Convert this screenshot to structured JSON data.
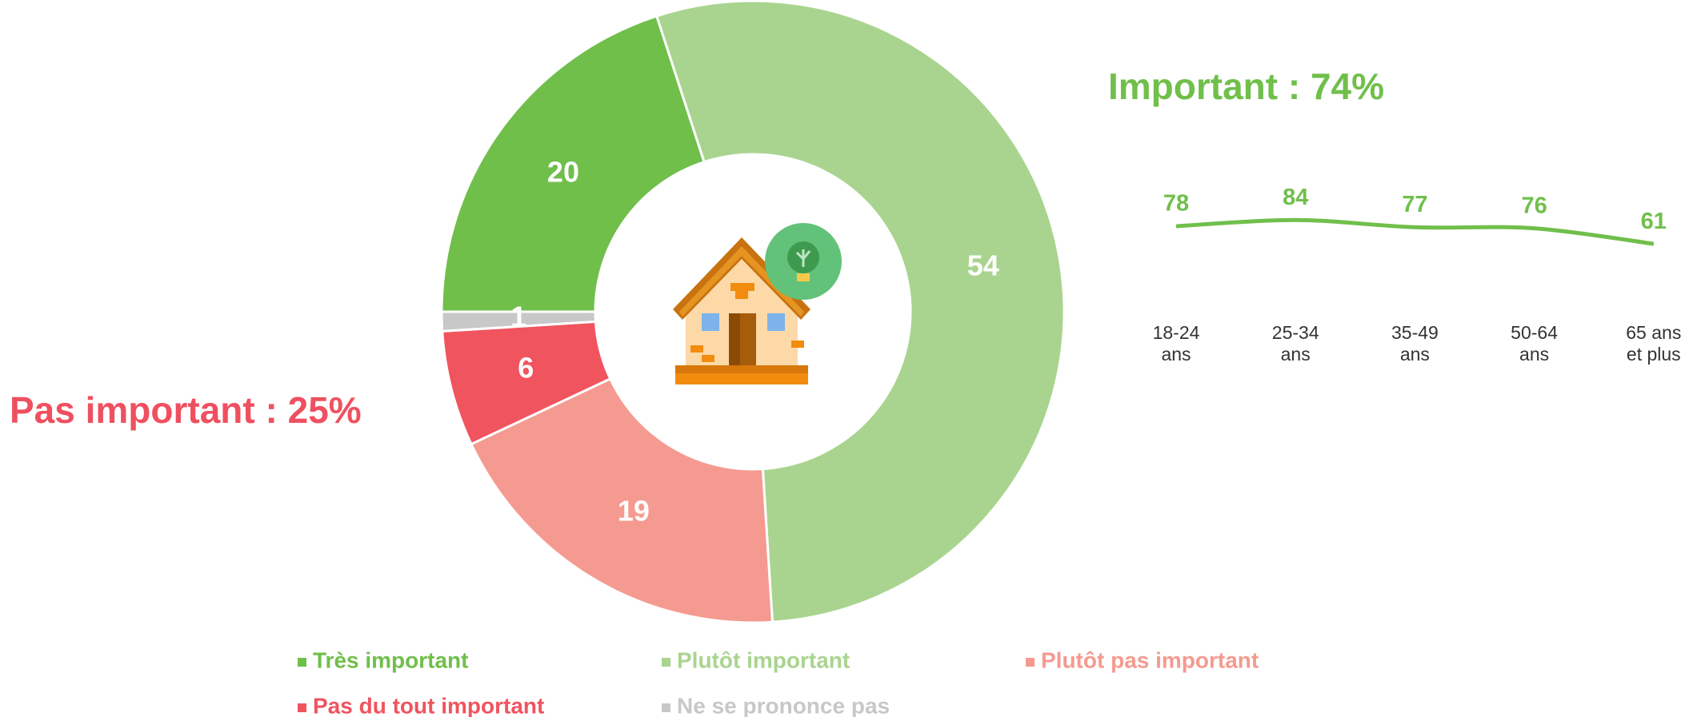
{
  "chart_data": [
    {
      "type": "pie",
      "title": "Important : 74%",
      "subtitle": "Pas important : 25%",
      "categories": [
        "Très important",
        "Plutôt important",
        "Plutôt pas important",
        "Pas du tout important",
        "Ne se prononce pas"
      ],
      "values": [
        20,
        54,
        19,
        6,
        1
      ],
      "colors": [
        "#70bf4b",
        "#a9d48f",
        "#f59a90",
        "#f0545f",
        "#c8c8c8"
      ],
      "legend": "bottom"
    },
    {
      "type": "line",
      "categories": [
        "18-24\nans",
        "25-34\nans",
        "35-49\nans",
        "50-64\nans",
        "65 ans\net plus"
      ],
      "values": [
        78,
        84,
        77,
        76,
        61
      ],
      "color": "#70bf4b"
    }
  ]
}
